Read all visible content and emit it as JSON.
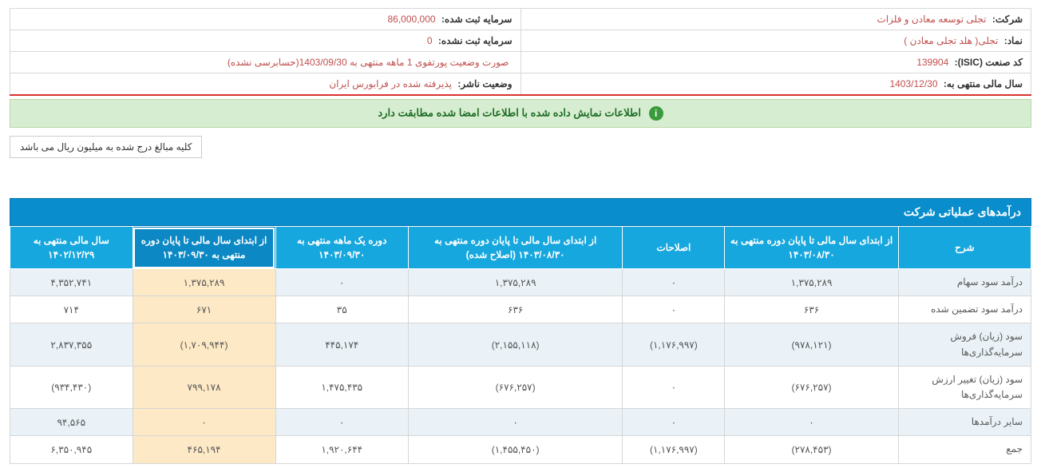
{
  "info": {
    "company_label": "شرکت:",
    "company_value": "تجلی توسعه معادن و فلزات",
    "capital_reg_label": "سرمایه ثبت شده:",
    "capital_reg_value": "86,000,000",
    "symbol_label": "نماد:",
    "symbol_value": "تجلی( هلد تجلی معادن )",
    "capital_unreg_label": "سرمایه ثبت نشده:",
    "capital_unreg_value": "0",
    "isic_label": "کد صنعت (ISIC):",
    "isic_value": "139904",
    "status_title_label": "",
    "status_title_value": "صورت وضعیت پورتفوی 1 ماهه منتهی به 1403/09/30(حسابرسی نشده)",
    "fiscal_label": "سال مالی منتهی به:",
    "fiscal_value": "1403/12/30",
    "publisher_label": "وضعیت ناشر:",
    "publisher_value": "پذیرفته شده در فرابورس ایران"
  },
  "banner": "اطلاعات نمایش داده شده با اطلاعات امضا شده مطابقت دارد",
  "note": "کلیه مبالغ درج شده به میلیون ریال می باشد",
  "section_title": "درآمدهای عملیاتی شرکت",
  "columns": [
    "شرح",
    "از ابتدای سال مالی تا پایان دوره منتهی به ۱۴۰۳/۰۸/۳۰",
    "اصلاحات",
    "از ابتدای سال مالی تا پایان دوره منتهی به ۱۴۰۳/۰۸/۳۰ (اصلاح شده)",
    "دوره یک ماهه منتهی به ۱۴۰۳/۰۹/۳۰",
    "از ابتدای سال مالی تا پایان دوره منتهی به ۱۴۰۳/۰۹/۳۰",
    "سال مالی منتهی به ۱۴۰۲/۱۲/۲۹"
  ],
  "col_widths": [
    "13%",
    "17%",
    "10%",
    "21%",
    "13%",
    "14%",
    "12%"
  ],
  "highlight_col_index": 5,
  "rows": [
    {
      "alt": true,
      "label": "درآمد سود سهام",
      "cells": [
        "۱,۳۷۵,۲۸۹",
        "۰",
        "۱,۳۷۵,۲۸۹",
        "۰",
        "۱,۳۷۵,۲۸۹",
        "۴,۳۵۲,۷۴۱"
      ],
      "neg": [
        false,
        false,
        false,
        false,
        false,
        false
      ]
    },
    {
      "alt": false,
      "label": "درآمد سود تضمین شده",
      "cells": [
        "۶۳۶",
        "۰",
        "۶۳۶",
        "۳۵",
        "۶۷۱",
        "۷۱۴"
      ],
      "neg": [
        false,
        false,
        false,
        false,
        false,
        false
      ]
    },
    {
      "alt": true,
      "label": "سود (زیان) فروش سرمایه‌گذاری‌ها",
      "cells": [
        "(۹۷۸,۱۲۱)",
        "(۱,۱۷۶,۹۹۷)",
        "(۲,۱۵۵,۱۱۸)",
        "۴۴۵,۱۷۴",
        "(۱,۷۰۹,۹۴۴)",
        "۲,۸۳۷,۳۵۵"
      ],
      "neg": [
        true,
        true,
        true,
        false,
        true,
        false
      ]
    },
    {
      "alt": false,
      "label": "سود (زیان) تغییر ارزش سرمایه‌گذاری‌ها",
      "cells": [
        "(۶۷۶,۲۵۷)",
        "۰",
        "(۶۷۶,۲۵۷)",
        "۱,۴۷۵,۴۳۵",
        "۷۹۹,۱۷۸",
        "(۹۳۴,۴۳۰)"
      ],
      "neg": [
        true,
        false,
        true,
        false,
        false,
        true
      ]
    },
    {
      "alt": true,
      "label": "سایر درآمدها",
      "cells": [
        "۰",
        "۰",
        "۰",
        "۰",
        "۰",
        "۹۴,۵۶۵"
      ],
      "neg": [
        false,
        false,
        false,
        false,
        false,
        false
      ]
    },
    {
      "alt": false,
      "label": "جمع",
      "cells": [
        "(۲۷۸,۴۵۳)",
        "(۱,۱۷۶,۹۹۷)",
        "(۱,۴۵۵,۴۵۰)",
        "۱,۹۲۰,۶۴۴",
        "۴۶۵,۱۹۴",
        "۶,۳۵۰,۹۴۵"
      ],
      "neg": [
        true,
        true,
        true,
        false,
        false,
        false
      ]
    }
  ]
}
